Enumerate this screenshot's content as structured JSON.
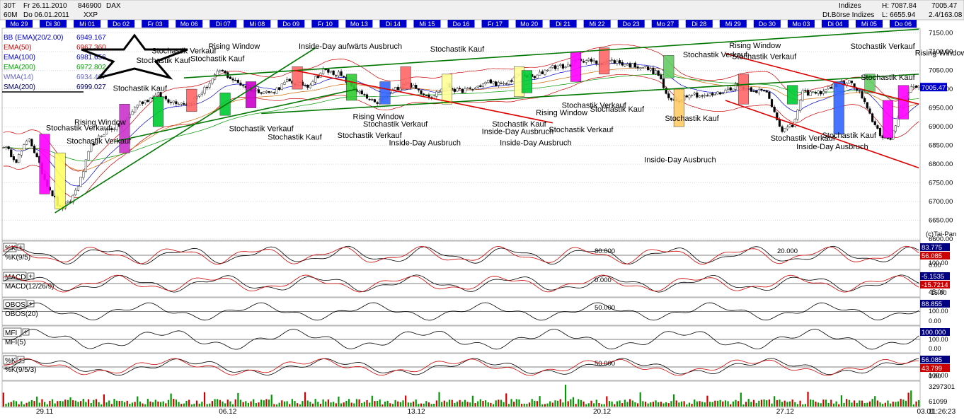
{
  "header": {
    "timeframe": "30T",
    "date_from_label": "Fr 26.11.2010",
    "wkn": "846900",
    "symbol": "DAX",
    "interval": "60M",
    "date_to_label": "Do 06.01.2011",
    "exchange": "XXP",
    "category": "Indizes",
    "exchange_name": "Dt.Börse Indizes",
    "high_label": "H: 7087.84",
    "low_label": "L: 6655.94",
    "last_value": "7005.47",
    "change": "2.4/163.08"
  },
  "day_labels": [
    "Mo 29",
    "Di 30",
    "Mi 01",
    "Do 02",
    "Fr 03",
    "Mo 06",
    "Di 07",
    "Mi 08",
    "Do 09",
    "Fr 10",
    "Mo 13",
    "Di 14",
    "Mi 15",
    "Do 16",
    "Fr 17",
    "Mo 20",
    "Di 21",
    "Mi 22",
    "Do 23",
    "Mo 27",
    "Di 28",
    "Mi 29",
    "Do 30",
    "Mo 03",
    "Di 04",
    "Mi 05",
    "Do 06"
  ],
  "legend": [
    {
      "label": "BB (EMA)(20/2.00)",
      "value": "6949.167",
      "color": "#0000cc"
    },
    {
      "label": "EMA(50)",
      "value": "6967.360",
      "color": "#cc0000"
    },
    {
      "label": "EMA(100)",
      "value": "6981.656",
      "color": "#0000cc"
    },
    {
      "label": "EMA(200)",
      "value": "6972.802",
      "color": "#00aa00"
    },
    {
      "label": "WMA(14)",
      "value": "6934.407",
      "color": "#6666cc"
    },
    {
      "label": "SMA(200)",
      "value": "6999.027",
      "color": "#000066"
    }
  ],
  "annotations": [
    {
      "text": "Stochastik Verkauf",
      "tx": 17,
      "p": 6890
    },
    {
      "text": "Rising Window",
      "tx": 28,
      "p": 6905
    },
    {
      "text": "Stochastik Verkauf",
      "tx": 25,
      "p": 6855
    },
    {
      "text": "Stochastik Verkauf",
      "tx": 58,
      "p": 7095
    },
    {
      "text": "Stochastik Kauf",
      "tx": 52,
      "p": 7070
    },
    {
      "text": "Stochastik Kauf",
      "tx": 43,
      "p": 6995
    },
    {
      "text": "Stochastik Kauf",
      "tx": 73,
      "p": 7075
    },
    {
      "text": "Rising Window",
      "tx": 80,
      "p": 7108
    },
    {
      "text": "Stochastik Verkauf",
      "tx": 88,
      "p": 6888
    },
    {
      "text": "Stochastik Kauf",
      "tx": 103,
      "p": 6865
    },
    {
      "text": "Inside-Day aufwärts Ausbruch",
      "tx": 115,
      "p": 7108
    },
    {
      "text": "Rising Window",
      "tx": 136,
      "p": 6920
    },
    {
      "text": "Stochastik Verkauf",
      "tx": 140,
      "p": 6900
    },
    {
      "text": "Stochastik Verkauf",
      "tx": 130,
      "p": 6870
    },
    {
      "text": "Inside-Day Ausbruch",
      "tx": 150,
      "p": 6850
    },
    {
      "text": "Stochastik Kauf",
      "tx": 166,
      "p": 7100
    },
    {
      "text": "Inside-Day Ausbruch",
      "tx": 186,
      "p": 6880
    },
    {
      "text": "Stochastik Kauf",
      "tx": 190,
      "p": 6900
    },
    {
      "text": "Inside-Day Ausbruch",
      "tx": 193,
      "p": 6850
    },
    {
      "text": "Rising Window",
      "tx": 207,
      "p": 6930
    },
    {
      "text": "Stochastik Verkauf",
      "tx": 212,
      "p": 6885
    },
    {
      "text": "Stochastik Verkauf",
      "tx": 217,
      "p": 6950
    },
    {
      "text": "Stochastik Kauf",
      "tx": 228,
      "p": 6940
    },
    {
      "text": "Stochastik Kauf",
      "tx": 257,
      "p": 6915
    },
    {
      "text": "Stochastik Verkauf",
      "tx": 264,
      "p": 7085
    },
    {
      "text": "Inside-Day Ausbruch",
      "tx": 249,
      "p": 6805
    },
    {
      "text": "Rising Window",
      "tx": 282,
      "p": 7110
    },
    {
      "text": "Stochastik Verkauf",
      "tx": 283,
      "p": 7080
    },
    {
      "text": "Stochastik Verkauf",
      "tx": 298,
      "p": 6862
    },
    {
      "text": "Inside-Day Ausbruch",
      "tx": 308,
      "p": 6840
    },
    {
      "text": "Stochastik Kauf",
      "tx": 318,
      "p": 6870
    },
    {
      "text": "Stochastik Verkauf",
      "tx": 329,
      "p": 7108
    },
    {
      "text": "Stochastik Kauf",
      "tx": 333,
      "p": 7025
    },
    {
      "text": "Rising Window",
      "tx": 354,
      "p": 7090
    }
  ],
  "price_ticks": [
    "7150.00",
    "7100.00",
    "7050.00",
    "7000.00",
    "6950.00",
    "6900.00",
    "6850.00",
    "6800.00",
    "6750.00",
    "6700.00",
    "6650.00",
    "6600.00"
  ],
  "last_price_label": "7005.47",
  "credit": "(c)Tai-Pan",
  "bottom_dates": [
    "29.11",
    "06.12",
    "13.12",
    "20.12",
    "27.12",
    "03.01"
  ],
  "time_label": "11:26:23",
  "indicators": [
    {
      "title": "%K",
      "name": "%K(9/5)",
      "values": [
        "83.775",
        "56.085"
      ],
      "colors": [
        "#000080",
        "#cc0000"
      ],
      "level_labels": [
        "80.000",
        "20.000"
      ],
      "axis_labels": [
        "100.00",
        "0.00"
      ]
    },
    {
      "title": "MACD",
      "name": "MACD(12/26/9)",
      "values": [
        "-5.1535",
        "-15.7214"
      ],
      "colors": [
        "#000080",
        "#cc0000"
      ],
      "level_labels": [
        "0.000"
      ],
      "axis_labels": [
        "45.00",
        "-15.00"
      ]
    },
    {
      "title": "OBOS",
      "name": "OBOS(20)",
      "values": [
        "88.855"
      ],
      "colors": [
        "#000080"
      ],
      "level_labels": [
        "50.000"
      ],
      "axis_labels": [
        "100.00",
        "0.00"
      ]
    },
    {
      "title": "MFI",
      "name": "MFI(5)",
      "values": [
        "100.000"
      ],
      "colors": [
        "#000080"
      ],
      "level_labels": [],
      "axis_labels": [
        "100.00",
        "0.00"
      ]
    },
    {
      "title": "%K",
      "name": "%K(9/5/3)",
      "values": [
        "56.085",
        "43.799"
      ],
      "colors": [
        "#000080",
        "#cc0000"
      ],
      "level_labels": [
        "50.000"
      ],
      "axis_labels": [
        "100.00",
        "0.00"
      ]
    }
  ],
  "volume_axis": [
    "3297301",
    "61099"
  ],
  "colors": {
    "header_blue": "#0000cc",
    "bull_candle": "#ffffff",
    "bear_candle": "#000000",
    "channel_green": "#007700",
    "channel_red": "#dd0000"
  },
  "chart_data": {
    "type": "candlestick",
    "symbol": "DAX",
    "ylim": [
      6600,
      7170
    ],
    "price_high": 7087.84,
    "price_low": 6655.94,
    "last": 7005.47,
    "anchor_points": [
      {
        "bar": 0,
        "price": 6850
      },
      {
        "bar": 5,
        "price": 6810
      },
      {
        "bar": 10,
        "price": 6870
      },
      {
        "bar": 16,
        "price": 6760
      },
      {
        "bar": 22,
        "price": 6680
      },
      {
        "bar": 26,
        "price": 6700
      },
      {
        "bar": 30,
        "price": 6760
      },
      {
        "bar": 34,
        "price": 6850
      },
      {
        "bar": 40,
        "price": 6890
      },
      {
        "bar": 46,
        "price": 6905
      },
      {
        "bar": 52,
        "price": 6960
      },
      {
        "bar": 60,
        "price": 6985
      },
      {
        "bar": 64,
        "price": 6970
      },
      {
        "bar": 72,
        "price": 6960
      },
      {
        "bar": 78,
        "price": 7000
      },
      {
        "bar": 84,
        "price": 7050
      },
      {
        "bar": 90,
        "price": 7020
      },
      {
        "bar": 96,
        "price": 7000
      },
      {
        "bar": 104,
        "price": 6990
      },
      {
        "bar": 110,
        "price": 7020
      },
      {
        "bar": 118,
        "price": 7010
      },
      {
        "bar": 124,
        "price": 7050
      },
      {
        "bar": 130,
        "price": 7040
      },
      {
        "bar": 138,
        "price": 6990
      },
      {
        "bar": 144,
        "price": 6960
      },
      {
        "bar": 150,
        "price": 6990
      },
      {
        "bar": 156,
        "price": 7020
      },
      {
        "bar": 160,
        "price": 7000
      },
      {
        "bar": 166,
        "price": 6980
      },
      {
        "bar": 172,
        "price": 7010
      },
      {
        "bar": 176,
        "price": 6995
      },
      {
        "bar": 182,
        "price": 7000
      },
      {
        "bar": 188,
        "price": 7020
      },
      {
        "bar": 194,
        "price": 7010
      },
      {
        "bar": 200,
        "price": 7040
      },
      {
        "bar": 206,
        "price": 7030
      },
      {
        "bar": 212,
        "price": 7060
      },
      {
        "bar": 218,
        "price": 7060
      },
      {
        "bar": 224,
        "price": 7080
      },
      {
        "bar": 230,
        "price": 7070
      },
      {
        "bar": 236,
        "price": 7075
      },
      {
        "bar": 242,
        "price": 7065
      },
      {
        "bar": 248,
        "price": 7060
      },
      {
        "bar": 254,
        "price": 7040
      },
      {
        "bar": 258,
        "price": 6970
      },
      {
        "bar": 262,
        "price": 6970
      },
      {
        "bar": 266,
        "price": 6990
      },
      {
        "bar": 272,
        "price": 6980
      },
      {
        "bar": 278,
        "price": 6990
      },
      {
        "bar": 284,
        "price": 7010
      },
      {
        "bar": 290,
        "price": 7000
      },
      {
        "bar": 296,
        "price": 6990
      },
      {
        "bar": 302,
        "price": 6890
      },
      {
        "bar": 306,
        "price": 6900
      },
      {
        "bar": 310,
        "price": 6990
      },
      {
        "bar": 316,
        "price": 6990
      },
      {
        "bar": 322,
        "price": 7010
      },
      {
        "bar": 328,
        "price": 7020
      },
      {
        "bar": 332,
        "price": 6990
      },
      {
        "bar": 336,
        "price": 6930
      },
      {
        "bar": 340,
        "price": 6880
      },
      {
        "bar": 344,
        "price": 6860
      },
      {
        "bar": 348,
        "price": 6950
      },
      {
        "bar": 352,
        "price": 7005
      }
    ],
    "channels": [
      {
        "color": "green",
        "from": {
          "bar": 20,
          "price": 6670
        },
        "to": {
          "bar": 121,
          "price": 7110
        }
      },
      {
        "color": "green",
        "from": {
          "bar": 43,
          "price": 6860
        },
        "to": {
          "bar": 137,
          "price": 7000
        }
      },
      {
        "color": "green",
        "from": {
          "bar": 70,
          "price": 7030
        },
        "to": {
          "bar": 355,
          "price": 7160
        }
      },
      {
        "color": "green",
        "from": {
          "bar": 100,
          "price": 6935
        },
        "to": {
          "bar": 355,
          "price": 7040
        }
      },
      {
        "color": "red",
        "from": {
          "bar": 113,
          "price": 7050
        },
        "to": {
          "bar": 213,
          "price": 6910
        }
      },
      {
        "color": "red",
        "from": {
          "bar": 280,
          "price": 7095
        },
        "to": {
          "bar": 355,
          "price": 6960
        }
      },
      {
        "color": "red",
        "from": {
          "bar": 280,
          "price": 6970
        },
        "to": {
          "bar": 355,
          "price": 6790
        }
      }
    ],
    "indicator_values": {
      "stoch_k": 83.775,
      "stoch_d": 56.085,
      "macd": -5.1535,
      "macd_signal": -15.7214,
      "obos": 88.855,
      "mfi": 100.0,
      "stoch_slow_k": 56.085,
      "stoch_slow_d": 43.799
    },
    "volume_max": 3297301
  }
}
